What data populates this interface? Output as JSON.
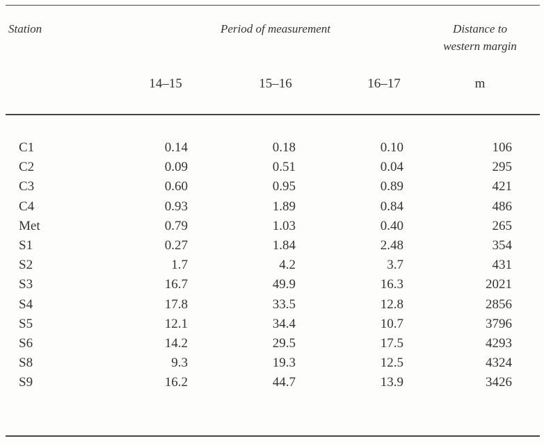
{
  "table": {
    "header": {
      "station": "Station",
      "period": "Period of measurement",
      "distance": [
        "Distance to",
        "western margin"
      ]
    },
    "subheader": [
      "14–15",
      "15–16",
      "16–17",
      "m"
    ],
    "rows": [
      [
        "C1",
        "0.14",
        "0.18",
        "0.10",
        "106"
      ],
      [
        "C2",
        "0.09",
        "0.51",
        "0.04",
        "295"
      ],
      [
        "C3",
        "0.60",
        "0.95",
        "0.89",
        "421"
      ],
      [
        "C4",
        "0.93",
        "1.89",
        "0.84",
        "486"
      ],
      [
        "Met",
        "0.79",
        "1.03",
        "0.40",
        "265"
      ],
      [
        "S1",
        "0.27",
        "1.84",
        "2.48",
        "354"
      ],
      [
        "S2",
        "1.7",
        "4.2",
        "3.7",
        "431"
      ],
      [
        "S3",
        "16.7",
        "49.9",
        "16.3",
        "2021"
      ],
      [
        "S4",
        "17.8",
        "33.5",
        "12.8",
        "2856"
      ],
      [
        "S5",
        "12.1",
        "34.4",
        "10.7",
        "3796"
      ],
      [
        "S6",
        "14.2",
        "29.5",
        "17.5",
        "4293"
      ],
      [
        "S8",
        "9.3",
        "19.3",
        "12.5",
        "4324"
      ],
      [
        "S9",
        "16.2",
        "44.7",
        "13.9",
        "3426"
      ]
    ]
  }
}
